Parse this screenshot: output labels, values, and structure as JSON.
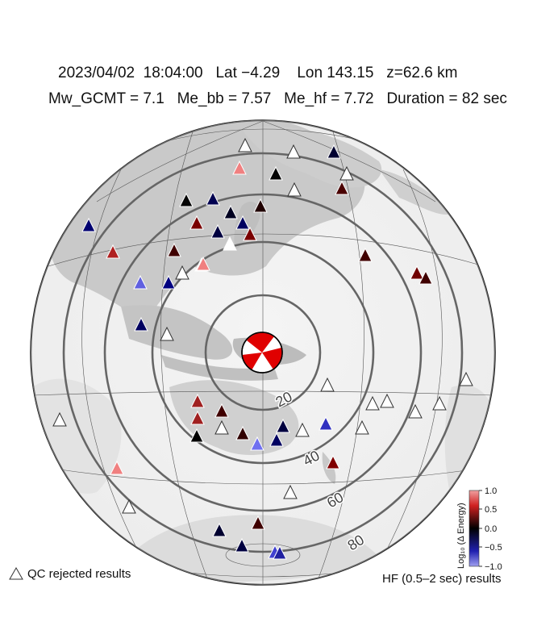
{
  "header": {
    "line1": "2023/04/02  18:04:00   Lat −4.29    Lon 143.15   z=62.6 km",
    "line2": "Mw_GCMT = 7.1   Me_bb = 7.57   Me_hf = 7.72   Duration = 82 sec"
  },
  "legend": {
    "qc_rejected": "QC rejected results",
    "hf_results": "HF (0.5–2 sec) results"
  },
  "colorbar": {
    "title": "Log₁₀ (Δ Energy)",
    "ticks": [
      "1.0",
      "0.5",
      "0.0",
      "−0.5",
      "−1.0"
    ],
    "colors": {
      "high": "#b40000",
      "mid": "#000000",
      "low": "#1a1aa8",
      "very_low": "#9a9af0",
      "very_high": "#f08a8a"
    }
  },
  "map": {
    "projection": "azimuthal equidistant",
    "center": {
      "lat": -4.29,
      "lon": 143.15
    },
    "distance_rings_deg": [
      "20",
      "40",
      "60",
      "80"
    ],
    "event_marker": "focal-mechanism beachball"
  },
  "stations": [
    {
      "state": "qc",
      "color": "#ffffff"
    },
    {
      "state": "ok",
      "color": "#000030"
    },
    {
      "state": "ok",
      "color": "#f08080"
    },
    {
      "state": "ok",
      "color": "#050505"
    },
    {
      "state": "qc",
      "color": "#ffffff"
    },
    {
      "state": "qc",
      "color": "#ffffff"
    },
    {
      "state": "ok",
      "color": "#4a0000"
    },
    {
      "state": "qc",
      "color": "#ffffff"
    },
    {
      "state": "ok",
      "color": "#050505"
    },
    {
      "state": "ok",
      "color": "#000050"
    },
    {
      "state": "ok",
      "color": "#000020"
    },
    {
      "state": "ok",
      "color": "#200000"
    },
    {
      "state": "ok",
      "color": "#000070"
    },
    {
      "state": "ok",
      "color": "#7a0000"
    },
    {
      "state": "ok",
      "color": "#000040"
    },
    {
      "state": "ok",
      "color": "#000060"
    },
    {
      "state": "ok",
      "color": "#7a0000"
    },
    {
      "state": "ok",
      "color": "#ffffff"
    },
    {
      "state": "ok",
      "color": "#400000"
    },
    {
      "state": "ok",
      "color": "#b02020"
    },
    {
      "state": "ok",
      "color": "#400000"
    },
    {
      "state": "ok",
      "color": "#ffffff"
    },
    {
      "state": "ok",
      "color": "#f08080"
    },
    {
      "state": "ok",
      "color": "#6060e0"
    },
    {
      "state": "ok",
      "color": "#000080"
    },
    {
      "state": "qc",
      "color": "#ffffff"
    },
    {
      "state": "ok",
      "color": "#000060"
    },
    {
      "state": "qc",
      "color": "#ffffff"
    },
    {
      "state": "ok",
      "color": "#700000"
    },
    {
      "state": "ok",
      "color": "#400000"
    },
    {
      "state": "qc",
      "color": "#ffffff"
    },
    {
      "state": "qc",
      "color": "#ffffff"
    },
    {
      "state": "qc",
      "color": "#ffffff"
    },
    {
      "state": "qc",
      "color": "#ffffff"
    },
    {
      "state": "qc",
      "color": "#ffffff"
    },
    {
      "state": "qc",
      "color": "#ffffff"
    },
    {
      "state": "qc",
      "color": "#ffffff"
    },
    {
      "state": "ok",
      "color": "#a02020"
    },
    {
      "state": "ok",
      "color": "#400000"
    },
    {
      "state": "ok",
      "color": "#a02020"
    },
    {
      "state": "ok",
      "color": "#000000"
    },
    {
      "state": "qc",
      "color": "#ffffff"
    },
    {
      "state": "ok",
      "color": "#300000"
    },
    {
      "state": "ok",
      "color": "#000040"
    },
    {
      "state": "ok",
      "color": "#7070f0"
    },
    {
      "state": "ok",
      "color": "#000060"
    },
    {
      "state": "qc",
      "color": "#ffffff"
    },
    {
      "state": "ok",
      "color": "#3030c0"
    },
    {
      "state": "ok",
      "color": "#800000"
    },
    {
      "state": "qc",
      "color": "#ffffff"
    },
    {
      "state": "qc",
      "color": "#ffffff"
    },
    {
      "state": "ok",
      "color": "#f08080"
    },
    {
      "state": "qc",
      "color": "#ffffff"
    },
    {
      "state": "ok",
      "color": "#000030"
    },
    {
      "state": "ok",
      "color": "#400000"
    },
    {
      "state": "ok",
      "color": "#000040"
    },
    {
      "state": "ok",
      "color": "#4040d0"
    },
    {
      "state": "ok",
      "color": "#2020a0"
    }
  ]
}
